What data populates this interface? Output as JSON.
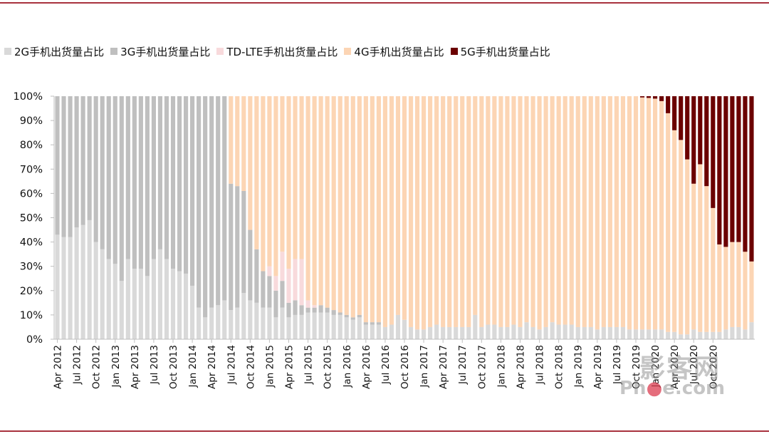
{
  "colors": {
    "frame_rule": "#a8323e",
    "axis": "#bfbfbf",
    "g2": "#d9d9d9",
    "g3": "#bfbfbf",
    "tdlte": "#f8dadc",
    "g4": "#fcd5b4",
    "g5": "#6b0000"
  },
  "watermark": {
    "main": "影客网",
    "sub_before": "Ph",
    "sub_dot": "●",
    "sub_after": "e.com"
  },
  "chart_data": {
    "type": "bar",
    "stacked": true,
    "title": "",
    "xlabel": "",
    "ylabel": "",
    "ylim": [
      0,
      100
    ],
    "yticks": [
      "0%",
      "10%",
      "20%",
      "30%",
      "40%",
      "50%",
      "60%",
      "70%",
      "80%",
      "90%",
      "100%"
    ],
    "legend_position": "top",
    "legend": [
      {
        "key": "g2",
        "label": "2G手机出货量占比"
      },
      {
        "key": "g3",
        "label": "3G手机出货量占比"
      },
      {
        "key": "tdlte",
        "label": "TD-LTE手机出货量占比"
      },
      {
        "key": "g4",
        "label": "4G手机出货量占比"
      },
      {
        "key": "g5",
        "label": "5G手机出货量占比"
      }
    ],
    "x_tick_labels": [
      "Apr 2012",
      "Jul 2012",
      "Oct 2012",
      "Jan 2013",
      "Apr 2013",
      "Jul 2013",
      "Oct 2013",
      "Jan 2014",
      "Apr 2014",
      "Jul 2014",
      "Oct 2014",
      "Jan 2015",
      "Apr 2015",
      "Jul 2015",
      "Oct 2015",
      "Jan 2016",
      "Apr 2016",
      "Jul 2016",
      "Oct 2016",
      "Jan 2017",
      "Apr 2017",
      "Jul 2017",
      "Oct 2017",
      "Jan 2018",
      "Apr 2018",
      "Jul 2018",
      "Oct 2018",
      "Jan 2019",
      "Apr 2019",
      "Jul 2019",
      "Oct 2019",
      "Jan 2020",
      "Apr 2020",
      "Jul 2020",
      "Oct 2020"
    ],
    "period_start": "2012-04",
    "period_end": "2020-12",
    "series": {
      "g2": [
        43,
        42,
        42,
        46,
        47,
        49,
        40,
        37,
        33,
        31,
        24,
        33,
        29,
        29,
        26,
        33,
        37,
        33,
        29,
        28,
        27,
        22,
        13,
        9,
        13,
        14,
        16,
        12,
        13,
        19,
        16,
        15,
        13,
        13,
        9,
        13,
        9,
        10,
        10,
        11,
        11,
        11,
        11,
        10,
        10,
        9,
        8,
        9,
        6,
        6,
        6,
        5,
        6,
        10,
        8,
        5,
        4,
        4,
        5,
        6,
        5,
        5,
        5,
        5,
        5,
        10,
        5,
        6,
        6,
        5,
        5,
        6,
        5,
        7,
        5,
        4,
        5,
        7,
        6,
        6,
        6,
        5,
        5,
        5,
        4,
        5,
        5,
        5,
        5,
        4,
        4,
        4,
        4,
        4,
        4,
        3,
        3,
        2,
        2,
        4,
        3,
        3,
        3,
        3,
        4,
        5,
        5,
        4,
        7
      ],
      "g3": [
        57,
        58,
        58,
        54,
        53,
        51,
        60,
        63,
        67,
        69,
        76,
        67,
        71,
        71,
        74,
        67,
        63,
        67,
        71,
        72,
        73,
        78,
        87,
        91,
        87,
        86,
        84,
        52,
        50,
        42,
        29,
        22,
        15,
        13,
        11,
        11,
        6,
        6,
        4,
        2,
        2,
        3,
        2,
        2,
        1,
        1,
        1,
        1,
        1,
        1,
        1,
        0,
        0,
        0,
        0,
        0,
        0,
        0,
        0,
        0,
        0,
        0,
        0,
        0,
        0,
        0,
        0,
        0,
        0,
        0,
        0,
        0,
        0,
        0,
        0,
        0,
        0,
        0,
        0,
        0,
        0,
        0,
        0,
        0,
        0,
        0,
        0,
        0,
        0,
        0,
        0,
        0,
        0,
        0,
        0,
        0,
        0,
        0,
        0,
        0,
        0,
        0,
        0,
        0,
        0,
        0,
        0,
        0,
        0
      ],
      "tdlte": [
        0,
        0,
        0,
        0,
        0,
        0,
        0,
        0,
        0,
        0,
        0,
        0,
        0,
        0,
        0,
        0,
        0,
        0,
        0,
        0,
        0,
        0,
        0,
        0,
        0,
        0,
        0,
        0,
        0,
        0,
        0,
        0,
        0,
        4,
        6,
        12,
        14,
        17,
        19,
        3,
        1,
        0,
        0,
        0,
        0,
        0,
        0,
        0,
        0,
        0,
        0,
        0,
        0,
        0,
        0,
        0,
        0,
        0,
        0,
        0,
        0,
        0,
        0,
        0,
        0,
        0,
        0,
        0,
        0,
        0,
        0,
        0,
        0,
        0,
        0,
        0,
        0,
        0,
        0,
        0,
        0,
        0,
        0,
        0,
        0,
        0,
        0,
        0,
        0,
        0,
        0,
        0,
        0,
        0,
        0,
        0,
        0,
        0,
        0,
        0,
        0,
        0,
        0,
        0,
        0,
        0,
        0,
        0,
        0
      ],
      "g4": [
        0,
        0,
        0,
        0,
        0,
        0,
        0,
        0,
        0,
        0,
        0,
        0,
        0,
        0,
        0,
        0,
        0,
        0,
        0,
        0,
        0,
        0,
        0,
        0,
        0,
        0,
        0,
        36,
        37,
        39,
        55,
        63,
        72,
        70,
        74,
        64,
        71,
        67,
        67,
        84,
        86,
        86,
        87,
        88,
        89,
        90,
        91,
        90,
        93,
        93,
        93,
        95,
        94,
        90,
        92,
        95,
        96,
        96,
        95,
        94,
        95,
        95,
        95,
        95,
        95,
        90,
        95,
        94,
        94,
        95,
        95,
        94,
        95,
        93,
        95,
        96,
        95,
        93,
        94,
        94,
        94,
        95,
        95,
        95,
        96,
        95,
        95,
        95,
        95,
        96,
        96,
        95.5,
        95.3,
        95,
        94,
        90,
        83,
        80,
        72,
        60,
        69,
        60,
        51,
        36,
        34,
        35,
        35,
        32,
        25
      ],
      "g5": [
        0,
        0,
        0,
        0,
        0,
        0,
        0,
        0,
        0,
        0,
        0,
        0,
        0,
        0,
        0,
        0,
        0,
        0,
        0,
        0,
        0,
        0,
        0,
        0,
        0,
        0,
        0,
        0,
        0,
        0,
        0,
        0,
        0,
        0,
        0,
        0,
        0,
        0,
        0,
        0,
        0,
        0,
        0,
        0,
        0,
        0,
        0,
        0,
        0,
        0,
        0,
        0,
        0,
        0,
        0,
        0,
        0,
        0,
        0,
        0,
        0,
        0,
        0,
        0,
        0,
        0,
        0,
        0,
        0,
        0,
        0,
        0,
        0,
        0,
        0,
        0,
        0,
        0,
        0,
        0,
        0,
        0,
        0,
        0,
        0,
        0,
        0,
        0,
        0,
        0,
        0,
        0.5,
        0.7,
        1,
        2,
        7,
        14,
        18,
        26,
        37,
        29,
        39,
        47,
        62,
        62,
        60,
        60,
        64,
        68
      ]
    }
  }
}
